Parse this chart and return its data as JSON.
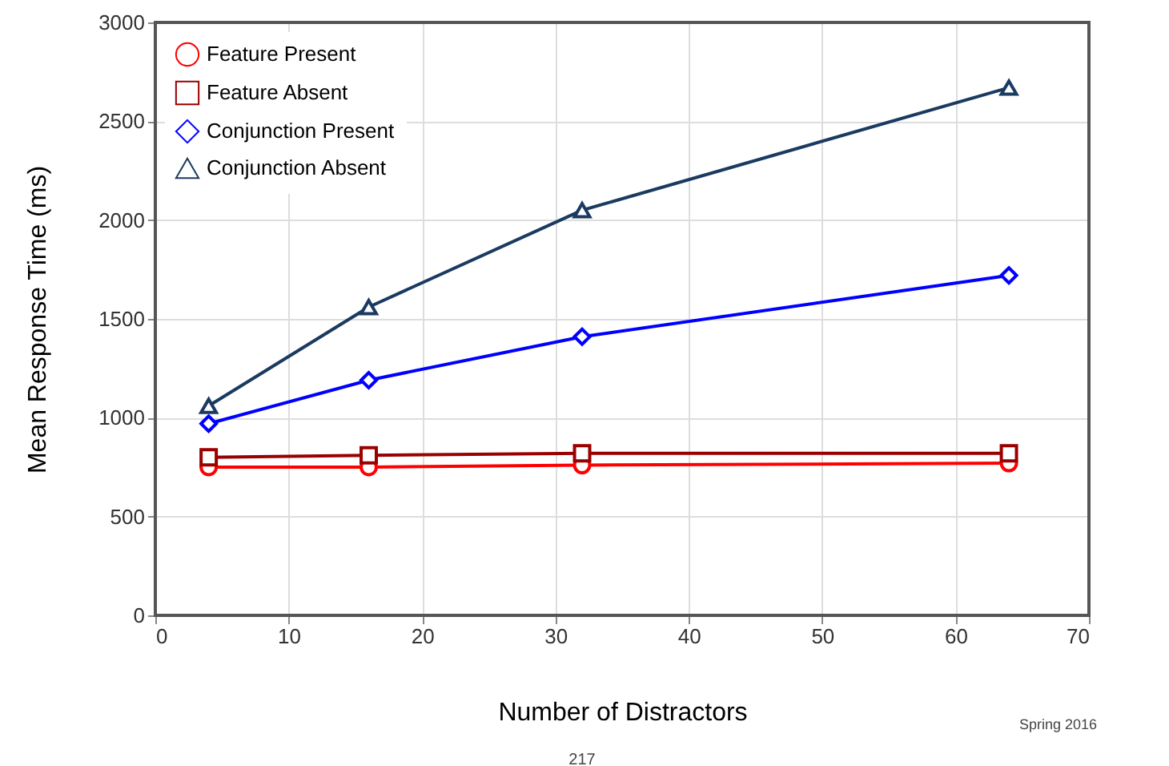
{
  "chart_data": {
    "type": "line",
    "xlabel": "Number of Distractors",
    "ylabel": "Mean Response Time (ms)",
    "x": [
      4,
      16,
      32,
      64
    ],
    "series": [
      {
        "name": "Feature Present",
        "color": "#ff0000",
        "marker": "circle",
        "values": [
          750,
          750,
          760,
          770
        ]
      },
      {
        "name": "Feature Absent",
        "color": "#990000",
        "marker": "square",
        "values": [
          800,
          810,
          820,
          820
        ]
      },
      {
        "name": "Conjunction Present",
        "color": "#0000ff",
        "marker": "diamond",
        "values": [
          970,
          1190,
          1410,
          1720
        ]
      },
      {
        "name": "Conjunction Absent",
        "color": "#1a3a60",
        "marker": "triangle",
        "values": [
          1060,
          1560,
          2050,
          2670
        ]
      }
    ],
    "xlim": [
      0,
      70
    ],
    "xticks": [
      0,
      10,
      20,
      30,
      40,
      50,
      60,
      70
    ],
    "ylim": [
      0,
      3000
    ],
    "yticks": [
      0,
      500,
      1000,
      1500,
      2000,
      2500,
      3000
    ],
    "grid": true,
    "legend": "top left",
    "line_style": "solid",
    "annotations": [
      "Spring 2016",
      "217"
    ]
  }
}
